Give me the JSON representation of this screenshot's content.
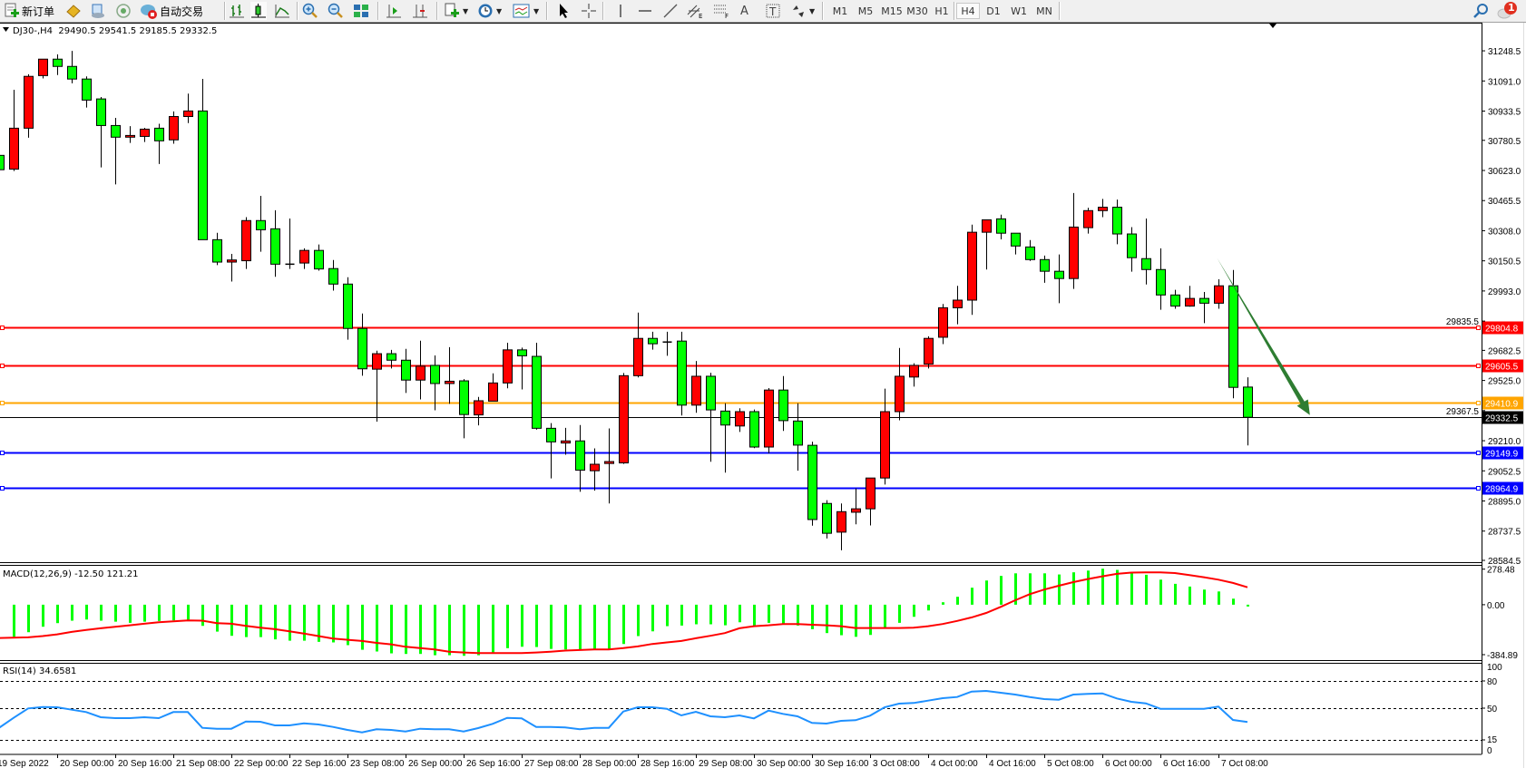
{
  "toolbar": {
    "new_order_label": "新订单",
    "auto_trading_label": "自动交易",
    "timeframes": [
      "M1",
      "M5",
      "M15",
      "M30",
      "H1",
      "H4",
      "D1",
      "W1",
      "MN"
    ],
    "active_timeframe": "H4",
    "notification_count": "1"
  },
  "chart_header": "DJ30-,H4  29490.5 29541.5 29185.5 29332.5",
  "macd_label": "MACD(12,26,9) -12.50 121.21",
  "rsi_label": "RSI(14) 34.6581",
  "colors": {
    "bull": "#ff0000",
    "bear": "#00ff00",
    "macd_hist": "#00ff00",
    "macd_signal": "#ff0000",
    "rsi": "#1e90ff",
    "arrow": "#2e7d32"
  },
  "chart_data": {
    "type": "candlestick",
    "symbol": "DJ30-",
    "timeframe": "H4",
    "ylim": [
      28575,
      31391
    ],
    "price_ticks": [
      "31248.5",
      "31091.0",
      "30933.5",
      "30780.5",
      "30623.0",
      "30465.5",
      "30308.0",
      "30150.5",
      "29993.0",
      "29835.5",
      "29682.5",
      "29525.0",
      "29367.5",
      "29210.0",
      "29052.5",
      "28895.0",
      "28737.5",
      "28584.5"
    ],
    "candles_ohlc": [
      [
        30702,
        30702,
        30620,
        30627
      ],
      [
        30630,
        31045,
        30620,
        30844
      ],
      [
        30844,
        31126,
        30794,
        31115
      ],
      [
        31119,
        31205,
        31104,
        31205
      ],
      [
        31205,
        31230,
        31122,
        31167
      ],
      [
        31167,
        31248,
        31079,
        31101
      ],
      [
        31101,
        31115,
        30952,
        30991
      ],
      [
        30997,
        31007,
        30639,
        30858
      ],
      [
        30858,
        30898,
        30550,
        30797
      ],
      [
        30797,
        30855,
        30767,
        30806
      ],
      [
        30801,
        30846,
        30772,
        30839
      ],
      [
        30844,
        30867,
        30657,
        30778
      ],
      [
        30783,
        30932,
        30763,
        30905
      ],
      [
        30905,
        31025,
        30871,
        30934
      ],
      [
        30934,
        31102,
        30261,
        30261
      ],
      [
        30261,
        30297,
        30128,
        30144
      ],
      [
        30144,
        30187,
        30042,
        30155
      ],
      [
        30151,
        30379,
        30108,
        30361
      ],
      [
        30361,
        30490,
        30198,
        30313
      ],
      [
        30318,
        30415,
        30067,
        30133
      ],
      [
        30133,
        30372,
        30108,
        30131
      ],
      [
        30139,
        30216,
        30108,
        30205
      ],
      [
        30205,
        30236,
        30099,
        30108
      ],
      [
        30110,
        30155,
        29995,
        30029
      ],
      [
        30029,
        30065,
        29738,
        29797
      ],
      [
        29797,
        29875,
        29550,
        29586
      ],
      [
        29584,
        29681,
        29310,
        29665
      ],
      [
        29665,
        29685,
        29588,
        29631
      ],
      [
        29631,
        29690,
        29460,
        29527
      ],
      [
        29527,
        29733,
        29426,
        29600
      ],
      [
        29604,
        29656,
        29369,
        29509
      ],
      [
        29509,
        29699,
        29403,
        29521
      ],
      [
        29523,
        29532,
        29223,
        29347
      ],
      [
        29345,
        29439,
        29290,
        29419
      ],
      [
        29417,
        29562,
        29417,
        29512
      ],
      [
        29512,
        29722,
        29484,
        29685
      ],
      [
        29685,
        29697,
        29478,
        29654
      ],
      [
        29651,
        29722,
        29268,
        29275
      ],
      [
        29275,
        29302,
        29013,
        29204
      ],
      [
        29198,
        29277,
        29137,
        29209
      ],
      [
        29209,
        29292,
        28943,
        29056
      ],
      [
        29053,
        29170,
        28949,
        29087
      ],
      [
        29091,
        29274,
        28882,
        29101
      ],
      [
        29094,
        29564,
        29089,
        29550
      ],
      [
        29550,
        29880,
        29541,
        29745
      ],
      [
        29745,
        29780,
        29686,
        29717
      ],
      [
        29726,
        29780,
        29654,
        29724
      ],
      [
        29731,
        29780,
        29342,
        29396
      ],
      [
        29396,
        29627,
        29356,
        29547
      ],
      [
        29547,
        29565,
        29100,
        29371
      ],
      [
        29365,
        29406,
        29043,
        29292
      ],
      [
        29287,
        29380,
        29256,
        29362
      ],
      [
        29362,
        29373,
        29171,
        29177
      ],
      [
        29177,
        29485,
        29144,
        29475
      ],
      [
        29475,
        29548,
        29261,
        29315
      ],
      [
        29313,
        29406,
        29053,
        29187
      ],
      [
        29186,
        29205,
        28766,
        28798
      ],
      [
        28882,
        28899,
        28699,
        28726
      ],
      [
        28732,
        28882,
        28637,
        28839
      ],
      [
        28836,
        28961,
        28773,
        28854
      ],
      [
        28854,
        29015,
        28767,
        29015
      ],
      [
        29015,
        29482,
        28981,
        29362
      ],
      [
        29362,
        29695,
        29317,
        29547
      ],
      [
        29543,
        29615,
        29493,
        29604
      ],
      [
        29611,
        29756,
        29588,
        29745
      ],
      [
        29751,
        29925,
        29715,
        29905
      ],
      [
        29905,
        30020,
        29819,
        29945
      ],
      [
        29945,
        30340,
        29868,
        30300
      ],
      [
        30300,
        30365,
        30105,
        30365
      ],
      [
        30370,
        30392,
        30263,
        30295
      ],
      [
        30295,
        30295,
        30184,
        30228
      ],
      [
        30223,
        30259,
        30150,
        30157
      ],
      [
        30157,
        30178,
        30036,
        30096
      ],
      [
        30096,
        30184,
        29929,
        30058
      ],
      [
        30058,
        30505,
        30004,
        30327
      ],
      [
        30324,
        30428,
        30293,
        30413
      ],
      [
        30413,
        30474,
        30379,
        30431
      ],
      [
        30431,
        30471,
        30237,
        30291
      ],
      [
        30291,
        30327,
        30094,
        30167
      ],
      [
        30162,
        30372,
        30027,
        30105
      ],
      [
        30105,
        30216,
        29895,
        29972
      ],
      [
        29972,
        29999,
        29900,
        29914
      ],
      [
        29914,
        30020,
        29911,
        29954
      ],
      [
        29954,
        29988,
        29825,
        29929
      ],
      [
        29929,
        30054,
        29900,
        30020
      ],
      [
        30020,
        30103,
        29432,
        29489
      ],
      [
        29490.5,
        29541.5,
        29185.5,
        29332.5
      ]
    ],
    "x_labels": [
      {
        "bar": 0,
        "text": "19 Sep 2022"
      },
      {
        "bar": 4,
        "text": "20 Sep 00:00"
      },
      {
        "bar": 8,
        "text": "20 Sep 16:00"
      },
      {
        "bar": 12,
        "text": "21 Sep 08:00"
      },
      {
        "bar": 16,
        "text": "22 Sep 00:00"
      },
      {
        "bar": 20,
        "text": "22 Sep 16:00"
      },
      {
        "bar": 24,
        "text": "23 Sep 08:00"
      },
      {
        "bar": 28,
        "text": "26 Sep 00:00"
      },
      {
        "bar": 32,
        "text": "26 Sep 16:00"
      },
      {
        "bar": 36,
        "text": "27 Sep 08:00"
      },
      {
        "bar": 40,
        "text": "28 Sep 00:00"
      },
      {
        "bar": 44,
        "text": "28 Sep 16:00"
      },
      {
        "bar": 48,
        "text": "29 Sep 08:00"
      },
      {
        "bar": 52,
        "text": "30 Sep 00:00"
      },
      {
        "bar": 56,
        "text": "30 Sep 16:00"
      },
      {
        "bar": 60,
        "text": "3 Oct 08:00"
      },
      {
        "bar": 64,
        "text": "4 Oct 00:00"
      },
      {
        "bar": 68,
        "text": "4 Oct 16:00"
      },
      {
        "bar": 72,
        "text": "5 Oct 08:00"
      },
      {
        "bar": 76,
        "text": "6 Oct 00:00"
      },
      {
        "bar": 80,
        "text": "6 Oct 16:00"
      },
      {
        "bar": 84,
        "text": "7 Oct 08:00"
      }
    ],
    "horizontal_lines": [
      {
        "price": 29804.8,
        "label": "29804.8",
        "color": "#ff0000"
      },
      {
        "price": 29605.5,
        "label": "29605.5",
        "color": "#ff0000"
      },
      {
        "price": 29410.9,
        "label": "29410.9",
        "color": "#ffa500"
      },
      {
        "price": 29149.9,
        "label": "29149.9",
        "color": "#0000ff"
      },
      {
        "price": 28964.9,
        "label": "28964.9",
        "color": "#0000ff"
      }
    ],
    "current_price": {
      "price": 29332.5,
      "label": "29332.5"
    },
    "arrow": {
      "from": {
        "bar": 83.9,
        "price": 30166
      },
      "to": {
        "bar": 90.3,
        "price": 29344
      }
    },
    "macd": {
      "ylim": [
        -384.89,
        278.48
      ],
      "ticks": [
        "278.48",
        "0.00",
        "-384.89"
      ],
      "histogram": [
        null,
        -223,
        -191,
        -153,
        -128,
        -111,
        -103,
        -111,
        -118,
        -126,
        -118,
        -113,
        -109,
        -113,
        -147,
        -187,
        -216,
        -225,
        -225,
        -241,
        -250,
        -250,
        -258,
        -262,
        -281,
        -313,
        -325,
        -338,
        -342,
        -342,
        -351,
        -351,
        -355,
        -351,
        -334,
        -302,
        -292,
        -294,
        -307,
        -311,
        -311,
        -311,
        -311,
        -273,
        -218,
        -185,
        -149,
        -145,
        -136,
        -136,
        -143,
        -122,
        -149,
        -126,
        -137,
        -145,
        -170,
        -197,
        -212,
        -223,
        -210,
        -158,
        -126,
        -84,
        -40,
        17,
        55,
        118,
        168,
        200,
        218,
        218,
        218,
        210,
        225,
        237,
        250,
        242,
        223,
        208,
        174,
        145,
        126,
        105,
        92,
        42,
        -12.5
      ],
      "signal": [
        -231,
        -229,
        -227,
        -218,
        -206,
        -189,
        -176,
        -164,
        -153,
        -143,
        -132,
        -122,
        -116,
        -109,
        -111,
        -128,
        -132,
        -147,
        -160,
        -170,
        -185,
        -200,
        -218,
        -235,
        -244,
        -252,
        -265,
        -275,
        -292,
        -302,
        -311,
        -326,
        -332,
        -336,
        -336,
        -336,
        -336,
        -332,
        -326,
        -319,
        -315,
        -311,
        -311,
        -302,
        -290,
        -273,
        -262,
        -252,
        -233,
        -216,
        -197,
        -164,
        -149,
        -143,
        -134,
        -134,
        -139,
        -143,
        -149,
        -162,
        -162,
        -162,
        -162,
        -160,
        -149,
        -134,
        -113,
        -88,
        -57,
        -15,
        31,
        73,
        105,
        132,
        157,
        178,
        197,
        214,
        223,
        225,
        225,
        220,
        206,
        191,
        174,
        151,
        121.21
      ]
    },
    "rsi": {
      "ylim": [
        0,
        100
      ],
      "ticks": [
        "100",
        "80",
        "50",
        "15",
        "0"
      ],
      "levels": [
        80,
        50,
        15
      ],
      "values": [
        28.3,
        39.3,
        49.7,
        51.3,
        51,
        48.3,
        45.7,
        40,
        39,
        39,
        40,
        39,
        45.7,
        45.7,
        28.3,
        27.3,
        27.3,
        35.3,
        35,
        31,
        31,
        33.3,
        32,
        29.3,
        26,
        23.3,
        26.7,
        26,
        24.3,
        27.3,
        26.7,
        26.7,
        24.3,
        28,
        32.7,
        39.3,
        38.7,
        29.3,
        29.3,
        28.7,
        26.7,
        28.3,
        28.3,
        46.3,
        51,
        51,
        49.3,
        42,
        46,
        41,
        40,
        42,
        38.7,
        47.3,
        43.7,
        41,
        33.7,
        33,
        36,
        36.7,
        41.7,
        51,
        55,
        55.7,
        58.3,
        61,
        62.3,
        68.3,
        69,
        67,
        65,
        62.3,
        60,
        59.3,
        65,
        65.7,
        66.3,
        60.7,
        57,
        55.3,
        49.3,
        49.3,
        49.3,
        49.3,
        51.7,
        37,
        34.6581
      ]
    }
  }
}
